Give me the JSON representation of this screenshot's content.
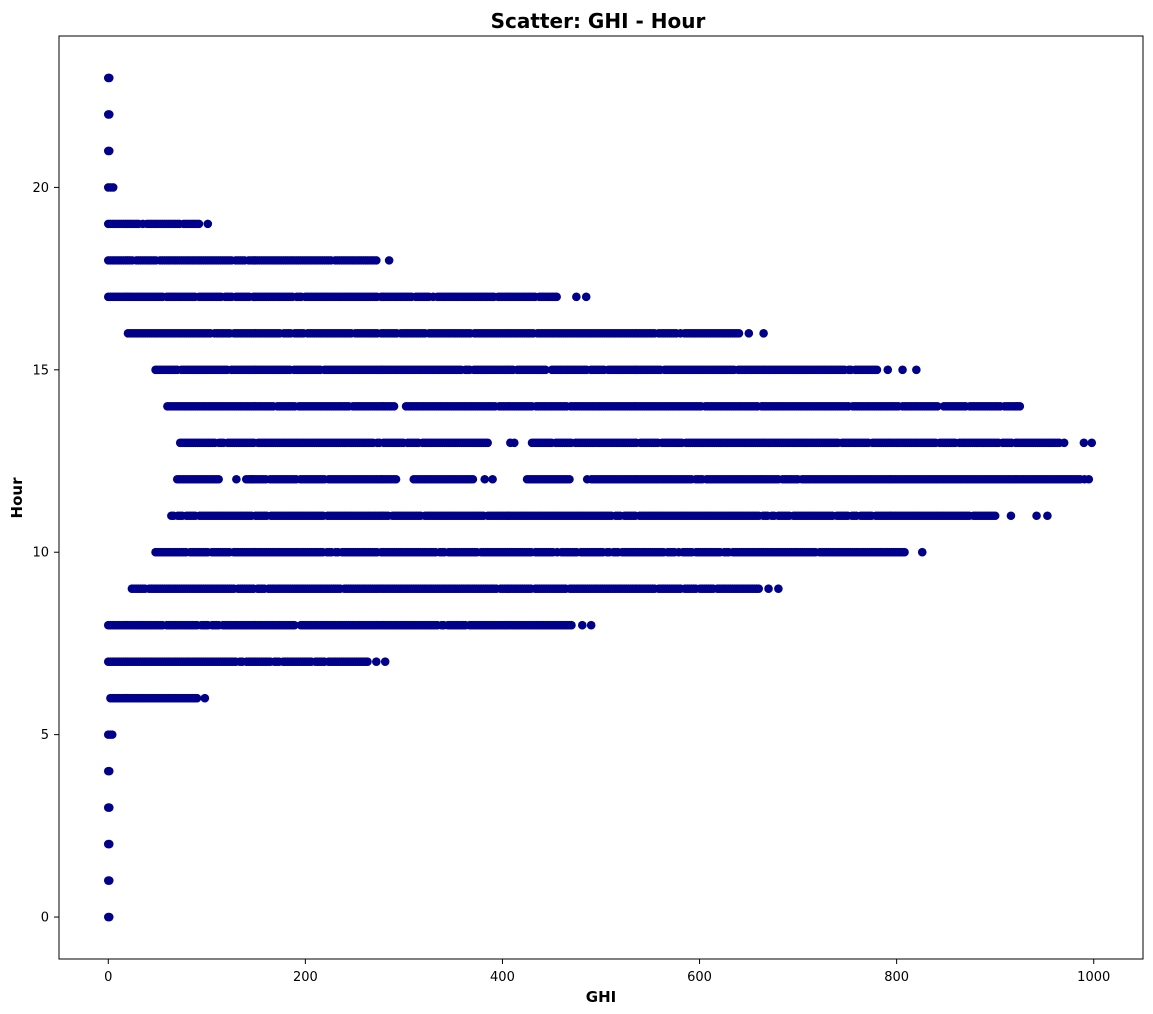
{
  "chart_data": {
    "type": "scatter",
    "title": "Scatter: GHI - Hour",
    "xlabel": "GHI",
    "ylabel": "Hour",
    "xlim": [
      -50,
      1050
    ],
    "ylim": [
      -1.15,
      24.15
    ],
    "x_ticks": [
      0,
      200,
      400,
      600,
      800,
      1000
    ],
    "y_ticks": [
      0,
      5,
      10,
      15,
      20
    ],
    "grid": false,
    "marker_color": "#00008b",
    "series": [
      {
        "rows": [
          {
            "hour": 0,
            "segments": [
              [
                0,
                1
              ]
            ]
          },
          {
            "hour": 1,
            "segments": [
              [
                0,
                1
              ]
            ]
          },
          {
            "hour": 2,
            "segments": [
              [
                0,
                1
              ]
            ]
          },
          {
            "hour": 3,
            "segments": [
              [
                0,
                1
              ]
            ]
          },
          {
            "hour": 4,
            "segments": [
              [
                0,
                1
              ]
            ]
          },
          {
            "hour": 5,
            "segments": [
              [
                0,
                4
              ]
            ]
          },
          {
            "hour": 6,
            "segments": [
              [
                0,
                90
              ]
            ],
            "extra": [
              98
            ]
          },
          {
            "hour": 7,
            "segments": [
              [
                0,
                263
              ]
            ],
            "extra": [
              272,
              281
            ]
          },
          {
            "hour": 8,
            "segments": [
              [
                0,
                470
              ]
            ],
            "extra": [
              481,
              490
            ]
          },
          {
            "hour": 9,
            "segments": [
              [
                24,
                660
              ]
            ],
            "extra": [
              670,
              680
            ]
          },
          {
            "hour": 10,
            "segments": [
              [
                48,
                808
              ]
            ],
            "extra": [
              826
            ]
          },
          {
            "hour": 11,
            "segments": [
              [
                64,
                900
              ]
            ],
            "extra": [
              916,
              942,
              953
            ]
          },
          {
            "hour": 12,
            "segments": [
              [
                70,
                112
              ],
              [
                140,
                292
              ],
              [
                310,
                370
              ],
              [
                425,
                468
              ],
              [
                486,
                995
              ]
            ],
            "extra": [
              130,
              145,
              382,
              390
            ]
          },
          {
            "hour": 13,
            "segments": [
              [
                73,
                385
              ],
              [
                430,
                965
              ]
            ],
            "extra": [
              408,
              412,
              970,
              990,
              998
            ]
          },
          {
            "hour": 14,
            "segments": [
              [
                60,
                290
              ],
              [
                300,
                925
              ]
            ]
          },
          {
            "hour": 15,
            "segments": [
              [
                48,
                780
              ]
            ],
            "extra": [
              791,
              806,
              820
            ]
          },
          {
            "hour": 16,
            "segments": [
              [
                20,
                640
              ]
            ],
            "extra": [
              650,
              665
            ]
          },
          {
            "hour": 17,
            "segments": [
              [
                0,
                455
              ]
            ],
            "extra": [
              475,
              485
            ]
          },
          {
            "hour": 18,
            "segments": [
              [
                0,
                272
              ]
            ],
            "extra": [
              285
            ]
          },
          {
            "hour": 19,
            "segments": [
              [
                0,
                92
              ]
            ],
            "extra": [
              101
            ]
          },
          {
            "hour": 20,
            "segments": [
              [
                0,
                5
              ]
            ]
          },
          {
            "hour": 21,
            "segments": [
              [
                0,
                1
              ]
            ]
          },
          {
            "hour": 22,
            "segments": [
              [
                0,
                1
              ]
            ]
          },
          {
            "hour": 23,
            "segments": [
              [
                0,
                1
              ]
            ]
          }
        ]
      }
    ]
  }
}
